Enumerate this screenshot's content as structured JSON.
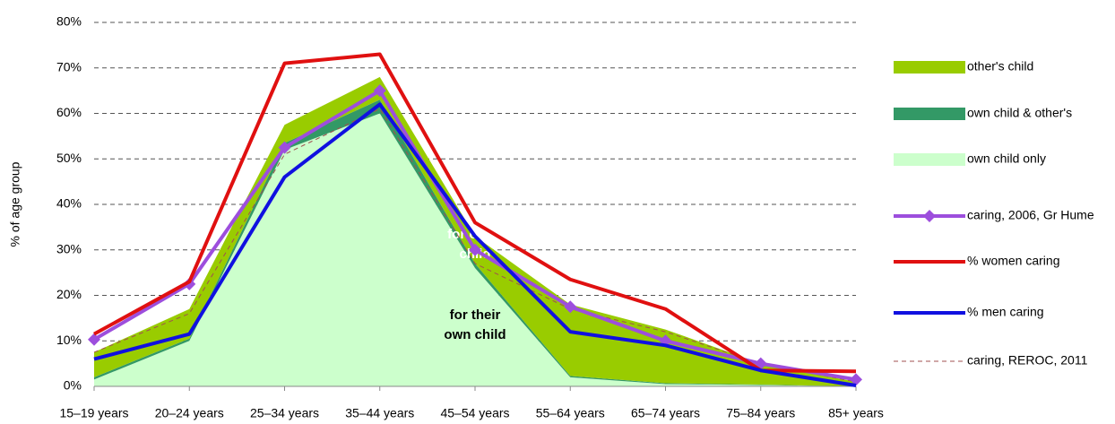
{
  "chart_data": {
    "type": "line",
    "y_label": "% of age group",
    "categories": [
      "15–19 years",
      "20–24 years",
      "25–34 years",
      "35–44 years",
      "45–54 years",
      "55–64 years",
      "65–74 years",
      "75–84 years",
      "85+ years"
    ],
    "ylim": [
      0,
      80
    ],
    "yticks": [
      {
        "value": 0,
        "label": "0%"
      },
      {
        "value": 10,
        "label": "10%"
      },
      {
        "value": 20,
        "label": "20%"
      },
      {
        "value": 30,
        "label": "30%"
      },
      {
        "value": 40,
        "label": "40%"
      },
      {
        "value": 50,
        "label": "50%"
      },
      {
        "value": 60,
        "label": "60%"
      },
      {
        "value": 70,
        "label": "70%"
      },
      {
        "value": 80,
        "label": "80%"
      }
    ],
    "grid": true,
    "legend": "right",
    "series": [
      {
        "name": "other's child",
        "style": "stacked-area",
        "color": "#99cc00",
        "values": [
          5.5,
          6.5,
          4,
          5,
          6,
          15.7,
          11.8,
          4.6,
          1
        ]
      },
      {
        "name": "own child & other's",
        "style": "stacked-area",
        "color": "#339966",
        "values": [
          0.5,
          0.5,
          1.5,
          3,
          1,
          0.3,
          0.2,
          0.1,
          0
        ]
      },
      {
        "name": "own child only",
        "style": "stacked-area",
        "color": "#ccffcc",
        "values": [
          1.5,
          10,
          52,
          60,
          26,
          2,
          0.5,
          0.3,
          0
        ]
      },
      {
        "name": "caring, 2006, Gr Hume",
        "style": "line",
        "marker": "diamond",
        "color": "#9d4edd",
        "values": [
          10.3,
          22.5,
          52.5,
          65,
          30,
          17.5,
          10,
          5,
          1.5
        ]
      },
      {
        "name": "% women caring",
        "style": "line",
        "color": "#e01010",
        "values": [
          11.5,
          23,
          71,
          73,
          36,
          23.5,
          17,
          3.5,
          3.3
        ]
      },
      {
        "name": "% men caring",
        "style": "line",
        "color": "#1010e0",
        "values": [
          6,
          11.5,
          46,
          62,
          33,
          12,
          9,
          3.5,
          0.2
        ]
      },
      {
        "name": "caring, REROC, 2011",
        "style": "dashed",
        "color": "#a05050",
        "values": [
          7.5,
          16,
          51,
          61,
          27,
          17,
          12,
          5,
          1
        ]
      }
    ],
    "annotations": [
      {
        "text": "for other child",
        "lines": [
          "for other",
          "child"
        ],
        "color": "#ffffff"
      },
      {
        "text": "for their own child",
        "lines": [
          "for their",
          "own child"
        ],
        "color": "#000000"
      }
    ]
  }
}
